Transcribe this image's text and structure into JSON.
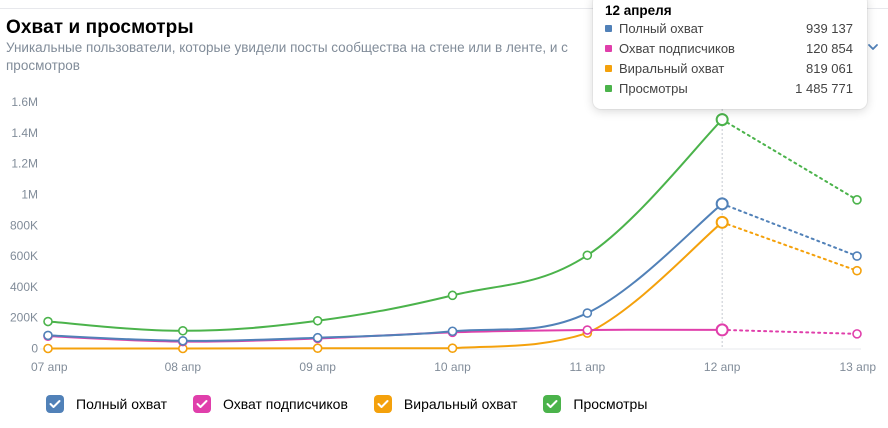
{
  "header": {
    "title": "Охват и просмотры",
    "subtitle": "Уникальные пользователи, которые увидели посты сообщества на стене или в ленте, и с",
    "subtitle_line2": "просмотров"
  },
  "tooltip": {
    "date": "12 апреля",
    "rows": [
      {
        "name": "Полный охват",
        "value": "939 137"
      },
      {
        "name": "Охват подписчиков",
        "value": "120 854"
      },
      {
        "name": "Виральный охват",
        "value": "819 061"
      },
      {
        "name": "Просмотры",
        "value": "1 485 771"
      }
    ]
  },
  "legend": [
    {
      "label": "Полный охват"
    },
    {
      "label": "Охват подписчиков"
    },
    {
      "label": "Виральный охват"
    },
    {
      "label": "Просмотры"
    }
  ],
  "chart_data": {
    "type": "line",
    "x": [
      "07 апр",
      "08 апр",
      "09 апр",
      "10 апр",
      "11 апр",
      "12 апр",
      "13 апр"
    ],
    "yticks": [
      "0",
      "200K",
      "400K",
      "600K",
      "800K",
      "1M",
      "1.2M",
      "1.4M",
      "1.6M"
    ],
    "ylim": [
      0,
      1600000
    ],
    "grid": false,
    "legend_position": "bottom",
    "highlighted_x": "12 апр",
    "dashed_after": "12 апр",
    "series": [
      {
        "name": "Полный охват",
        "color": "#5181b8",
        "values": [
          85000,
          50000,
          70000,
          112000,
          230000,
          939137,
          600000
        ]
      },
      {
        "name": "Охват подписчиков",
        "color": "#e03fab",
        "values": [
          80000,
          45000,
          65000,
          105000,
          120000,
          120854,
          95000
        ]
      },
      {
        "name": "Виральный охват",
        "color": "#f4a10c",
        "values": [
          0,
          0,
          2000,
          2000,
          100000,
          819061,
          505000
        ]
      },
      {
        "name": "Просмотры",
        "color": "#4bb34b",
        "values": [
          175000,
          115000,
          180000,
          345000,
          605000,
          1485771,
          965000
        ]
      }
    ]
  }
}
